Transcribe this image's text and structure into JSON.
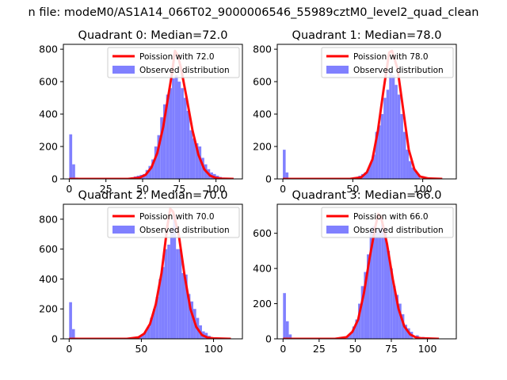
{
  "suptitle": "n file: modeM0/AS1A14_066T02_9000006546_55989cztM0_level2_quad_clean",
  "colors": {
    "fit_line": "#ff0000",
    "hist": "#8080ff"
  },
  "chart_data": [
    {
      "type": "bar",
      "title": "Quadrant 0: Median=72.0",
      "median": 72.0,
      "xlim": [
        -4,
        118
      ],
      "ylim": [
        0,
        830
      ],
      "xticks": [
        0,
        25,
        50,
        75,
        100
      ],
      "yticks": [
        0,
        200,
        400,
        600,
        800
      ],
      "legend": [
        "Poission with 72.0",
        "Observed distribution"
      ],
      "legend_position": "top-right",
      "bin_width": 2,
      "hist": [
        [
          0,
          275
        ],
        [
          2,
          90
        ],
        [
          4,
          8
        ],
        [
          10,
          2
        ],
        [
          20,
          2
        ],
        [
          30,
          2
        ],
        [
          40,
          5
        ],
        [
          42,
          10
        ],
        [
          44,
          15
        ],
        [
          46,
          20
        ],
        [
          48,
          25
        ],
        [
          50,
          30
        ],
        [
          52,
          55
        ],
        [
          54,
          80
        ],
        [
          56,
          120
        ],
        [
          58,
          200
        ],
        [
          60,
          270
        ],
        [
          62,
          380
        ],
        [
          64,
          460
        ],
        [
          66,
          520
        ],
        [
          68,
          560
        ],
        [
          70,
          620
        ],
        [
          72,
          640
        ],
        [
          74,
          600
        ],
        [
          76,
          560
        ],
        [
          78,
          500
        ],
        [
          80,
          420
        ],
        [
          82,
          300
        ],
        [
          84,
          250
        ],
        [
          86,
          220
        ],
        [
          88,
          200
        ],
        [
          90,
          130
        ],
        [
          92,
          90
        ],
        [
          94,
          60
        ],
        [
          96,
          40
        ],
        [
          98,
          30
        ],
        [
          100,
          20
        ],
        [
          102,
          12
        ],
        [
          104,
          8
        ],
        [
          106,
          5
        ],
        [
          108,
          3
        ],
        [
          110,
          2
        ]
      ],
      "fit_curve": [
        [
          0,
          0
        ],
        [
          40,
          0
        ],
        [
          48,
          8
        ],
        [
          52,
          25
        ],
        [
          56,
          70
        ],
        [
          60,
          160
        ],
        [
          64,
          320
        ],
        [
          68,
          540
        ],
        [
          70,
          650
        ],
        [
          72,
          790
        ],
        [
          74,
          760
        ],
        [
          76,
          690
        ],
        [
          80,
          500
        ],
        [
          84,
          300
        ],
        [
          88,
          150
        ],
        [
          92,
          60
        ],
        [
          96,
          20
        ],
        [
          100,
          6
        ],
        [
          104,
          2
        ],
        [
          112,
          0
        ]
      ]
    },
    {
      "type": "bar",
      "title": "Quadrant 1: Median=78.0",
      "median": 78.0,
      "xlim": [
        -4,
        124
      ],
      "ylim": [
        0,
        830
      ],
      "xticks": [
        0,
        50,
        100
      ],
      "yticks": [
        0,
        200,
        400,
        600,
        800
      ],
      "legend": [
        "Poission with 78.0",
        "Observed distribution"
      ],
      "legend_position": "top-right",
      "bin_width": 2,
      "hist": [
        [
          0,
          180
        ],
        [
          2,
          40
        ],
        [
          4,
          5
        ],
        [
          20,
          2
        ],
        [
          30,
          2
        ],
        [
          40,
          3
        ],
        [
          46,
          5
        ],
        [
          50,
          10
        ],
        [
          52,
          12
        ],
        [
          54,
          20
        ],
        [
          56,
          30
        ],
        [
          58,
          40
        ],
        [
          60,
          60
        ],
        [
          62,
          100
        ],
        [
          64,
          150
        ],
        [
          66,
          290
        ],
        [
          68,
          330
        ],
        [
          70,
          400
        ],
        [
          72,
          500
        ],
        [
          74,
          550
        ],
        [
          76,
          670
        ],
        [
          78,
          640
        ],
        [
          80,
          580
        ],
        [
          82,
          520
        ],
        [
          84,
          400
        ],
        [
          86,
          290
        ],
        [
          88,
          180
        ],
        [
          90,
          110
        ],
        [
          92,
          70
        ],
        [
          94,
          50
        ],
        [
          96,
          30
        ],
        [
          100,
          15
        ],
        [
          104,
          8
        ],
        [
          108,
          3
        ],
        [
          112,
          2
        ]
      ],
      "fit_curve": [
        [
          0,
          0
        ],
        [
          48,
          0
        ],
        [
          56,
          10
        ],
        [
          60,
          40
        ],
        [
          64,
          120
        ],
        [
          68,
          300
        ],
        [
          72,
          550
        ],
        [
          76,
          780
        ],
        [
          78,
          790
        ],
        [
          82,
          680
        ],
        [
          86,
          430
        ],
        [
          90,
          180
        ],
        [
          94,
          60
        ],
        [
          98,
          15
        ],
        [
          104,
          3
        ],
        [
          114,
          0
        ]
      ]
    },
    {
      "type": "bar",
      "title": "Quadrant 2: Median=70.0",
      "median": 70.0,
      "xlim": [
        -4,
        120
      ],
      "ylim": [
        0,
        900
      ],
      "xticks": [
        0,
        50,
        100
      ],
      "yticks": [
        0,
        200,
        400,
        600,
        800
      ],
      "legend": [
        "Poission with 70.0",
        "Observed distribution"
      ],
      "legend_position": "top-right",
      "bin_width": 2,
      "hist": [
        [
          0,
          245
        ],
        [
          2,
          65
        ],
        [
          4,
          8
        ],
        [
          20,
          2
        ],
        [
          30,
          2
        ],
        [
          38,
          5
        ],
        [
          40,
          8
        ],
        [
          42,
          10
        ],
        [
          44,
          12
        ],
        [
          46,
          15
        ],
        [
          48,
          20
        ],
        [
          50,
          30
        ],
        [
          52,
          50
        ],
        [
          54,
          80
        ],
        [
          56,
          140
        ],
        [
          58,
          200
        ],
        [
          60,
          280
        ],
        [
          62,
          400
        ],
        [
          64,
          480
        ],
        [
          66,
          600
        ],
        [
          68,
          630
        ],
        [
          70,
          740
        ],
        [
          72,
          820
        ],
        [
          74,
          600
        ],
        [
          76,
          600
        ],
        [
          78,
          440
        ],
        [
          80,
          430
        ],
        [
          82,
          300
        ],
        [
          84,
          250
        ],
        [
          86,
          200
        ],
        [
          88,
          140
        ],
        [
          90,
          90
        ],
        [
          92,
          50
        ],
        [
          94,
          40
        ],
        [
          96,
          20
        ],
        [
          100,
          10
        ],
        [
          104,
          5
        ],
        [
          108,
          3
        ]
      ],
      "fit_curve": [
        [
          0,
          0
        ],
        [
          40,
          0
        ],
        [
          48,
          10
        ],
        [
          52,
          35
        ],
        [
          56,
          100
        ],
        [
          60,
          230
        ],
        [
          64,
          440
        ],
        [
          68,
          750
        ],
        [
          70,
          870
        ],
        [
          72,
          850
        ],
        [
          76,
          690
        ],
        [
          80,
          420
        ],
        [
          84,
          200
        ],
        [
          88,
          80
        ],
        [
          92,
          25
        ],
        [
          96,
          8
        ],
        [
          100,
          3
        ],
        [
          112,
          0
        ]
      ]
    },
    {
      "type": "bar",
      "title": "Quadrant 3: Median=66.0",
      "median": 66.0,
      "xlim": [
        -4,
        120
      ],
      "ylim": [
        0,
        765
      ],
      "xticks": [
        0,
        25,
        50,
        75,
        100
      ],
      "yticks": [
        0,
        200,
        400,
        600
      ],
      "legend": [
        "Poission with 66.0",
        "Observed distribution"
      ],
      "legend_position": "top-right",
      "bin_width": 2,
      "hist": [
        [
          0,
          260
        ],
        [
          2,
          100
        ],
        [
          4,
          25
        ],
        [
          20,
          2
        ],
        [
          30,
          3
        ],
        [
          36,
          5
        ],
        [
          40,
          8
        ],
        [
          44,
          15
        ],
        [
          46,
          30
        ],
        [
          48,
          70
        ],
        [
          50,
          110
        ],
        [
          52,
          200
        ],
        [
          54,
          300
        ],
        [
          56,
          380
        ],
        [
          58,
          480
        ],
        [
          60,
          620
        ],
        [
          62,
          640
        ],
        [
          64,
          620
        ],
        [
          66,
          630
        ],
        [
          68,
          650
        ],
        [
          70,
          630
        ],
        [
          72,
          500
        ],
        [
          74,
          400
        ],
        [
          76,
          300
        ],
        [
          78,
          250
        ],
        [
          80,
          200
        ],
        [
          82,
          140
        ],
        [
          84,
          80
        ],
        [
          86,
          60
        ],
        [
          88,
          40
        ],
        [
          92,
          20
        ],
        [
          96,
          10
        ],
        [
          100,
          6
        ],
        [
          104,
          3
        ]
      ],
      "fit_curve": [
        [
          0,
          0
        ],
        [
          36,
          0
        ],
        [
          44,
          10
        ],
        [
          48,
          40
        ],
        [
          52,
          110
        ],
        [
          56,
          260
        ],
        [
          60,
          460
        ],
        [
          64,
          640
        ],
        [
          66,
          710
        ],
        [
          68,
          690
        ],
        [
          72,
          540
        ],
        [
          76,
          340
        ],
        [
          80,
          170
        ],
        [
          84,
          70
        ],
        [
          88,
          25
        ],
        [
          92,
          8
        ],
        [
          96,
          3
        ],
        [
          108,
          0
        ]
      ]
    }
  ]
}
